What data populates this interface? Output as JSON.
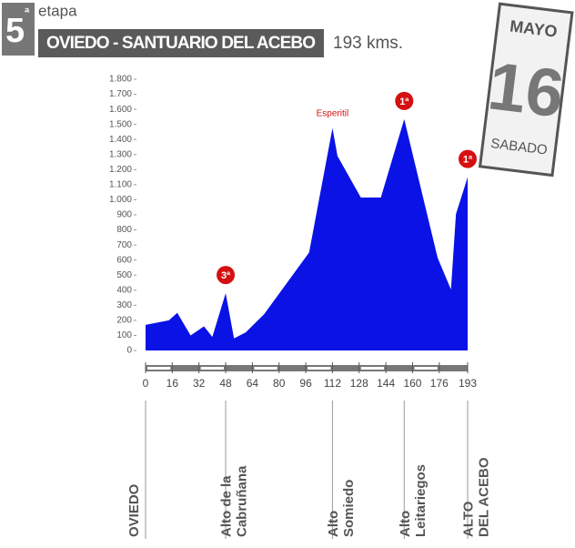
{
  "chart_data": {
    "type": "area",
    "stage_number": "5",
    "stage_suffix": "ª",
    "stage_word": "etapa",
    "title": "OVIEDO - SANTUARIO DEL ACEBO",
    "distance": "193 kms.",
    "calendar": {
      "month": "MAYO",
      "day": "16",
      "weekday": "SABADO"
    },
    "x": [
      0,
      14,
      19,
      27,
      35,
      40,
      48,
      53,
      60,
      71,
      98,
      112,
      115,
      129,
      141,
      155,
      175,
      183,
      186,
      193
    ],
    "series": [
      {
        "color": "#0a12e6",
        "values": [
          170,
          200,
          250,
          100,
          160,
          90,
          380,
          80,
          120,
          240,
          650,
          1475,
          1290,
          1015,
          1015,
          1535,
          615,
          405,
          905,
          1150
        ]
      }
    ],
    "xlim": [
      0,
      193
    ],
    "xticks": [
      0,
      16,
      32,
      48,
      64,
      80,
      96,
      112,
      128,
      144,
      160,
      176,
      193
    ],
    "ylim": [
      0,
      1800
    ],
    "yticks": [
      0,
      100,
      200,
      300,
      400,
      500,
      600,
      700,
      800,
      900,
      {
        "value": 1000,
        "label": "1.000"
      },
      {
        "value": 1100,
        "label": "1.100"
      },
      {
        "value": 1200,
        "label": "1.200"
      },
      {
        "value": 1300,
        "label": "1.300"
      },
      {
        "value": 1400,
        "label": "1.400"
      },
      {
        "value": 1500,
        "label": "1.500"
      },
      {
        "value": 1600,
        "label": "1.600"
      },
      {
        "value": 1700,
        "label": "1.700"
      },
      {
        "value": 1800,
        "label": "1.800"
      }
    ],
    "climbs": [
      {
        "x": 48,
        "y": 380,
        "label": "3ª"
      },
      {
        "x": 155,
        "y": 1535,
        "label": "1ª"
      },
      {
        "x": 193,
        "y": 1150,
        "label": "1ª"
      }
    ],
    "annotations": [
      {
        "x": 112,
        "y": 1475,
        "text": "Esperitil"
      }
    ],
    "places": [
      {
        "x": 0,
        "lines": [
          "OVIEDO"
        ]
      },
      {
        "x": 48,
        "lines": [
          "Alto de la",
          "Cabruñana"
        ]
      },
      {
        "x": 112,
        "lines": [
          "Alto",
          "Somiedo"
        ]
      },
      {
        "x": 155,
        "lines": [
          "Alto",
          "Leitariegos"
        ]
      },
      {
        "x": 193,
        "lines": [
          "ALTO",
          "DEL ACEBO"
        ]
      }
    ]
  }
}
